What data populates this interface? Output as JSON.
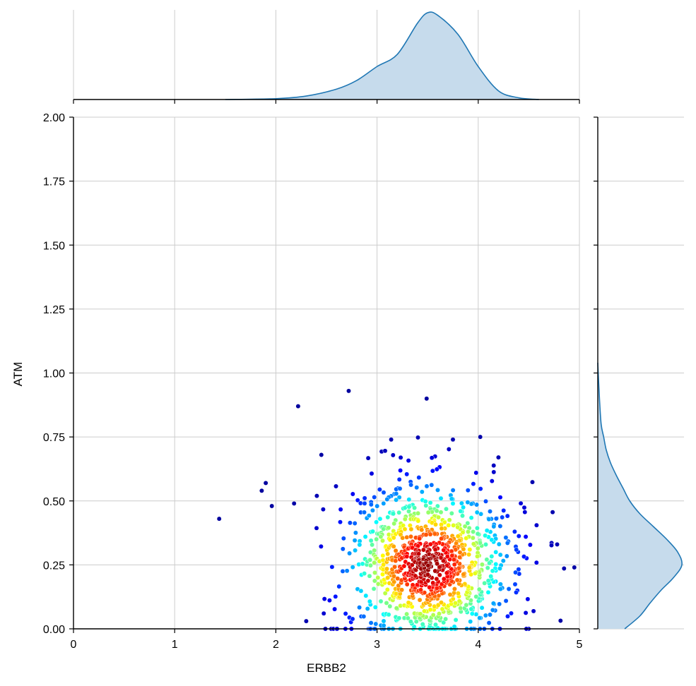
{
  "chart_data": {
    "type": "scatter",
    "kind": "joint-plot-with-marginal-kde",
    "xlabel": "ERBB2",
    "ylabel": "ATM",
    "xlim": [
      0,
      5
    ],
    "ylim": [
      0,
      2
    ],
    "x_ticks": [
      "0",
      "1",
      "2",
      "3",
      "4",
      "5"
    ],
    "y_ticks": [
      "0.00",
      "0.25",
      "0.50",
      "0.75",
      "1.00",
      "1.25",
      "1.50",
      "1.75",
      "2.00"
    ],
    "grid": true,
    "colormap": "jet (point color encodes local density)",
    "point_count_estimate": 1000,
    "point_distribution": {
      "x_center": 3.5,
      "x_sd": 0.42,
      "y_center": 0.25,
      "y_sd": 0.16,
      "y_floor": 0.0
    },
    "notable_outliers": [
      {
        "x": 1.44,
        "y": 0.43
      },
      {
        "x": 1.86,
        "y": 0.54
      },
      {
        "x": 1.9,
        "y": 0.57
      },
      {
        "x": 1.96,
        "y": 0.48
      },
      {
        "x": 2.18,
        "y": 0.49
      },
      {
        "x": 2.22,
        "y": 0.87
      },
      {
        "x": 2.72,
        "y": 0.93
      },
      {
        "x": 3.49,
        "y": 0.9
      },
      {
        "x": 4.02,
        "y": 0.75
      },
      {
        "x": 3.75,
        "y": 0.74
      },
      {
        "x": 3.14,
        "y": 0.74
      },
      {
        "x": 2.3,
        "y": 0.03
      },
      {
        "x": 4.2,
        "y": 0.67
      },
      {
        "x": 4.36,
        "y": 0.38
      },
      {
        "x": 4.47,
        "y": 0.36
      },
      {
        "x": 4.78,
        "y": 0.33
      },
      {
        "x": 4.95,
        "y": 0.24
      },
      {
        "x": 2.45,
        "y": 0.68
      }
    ],
    "marginal_x_kde": {
      "x": [
        1.5,
        2.0,
        2.3,
        2.6,
        2.8,
        3.0,
        3.2,
        3.4,
        3.5,
        3.6,
        3.8,
        4.0,
        4.2,
        4.4,
        4.6
      ],
      "density": [
        0.0,
        0.01,
        0.04,
        0.12,
        0.22,
        0.38,
        0.52,
        0.88,
        1.0,
        0.97,
        0.75,
        0.38,
        0.1,
        0.02,
        0.0
      ]
    },
    "marginal_y_kde": {
      "y": [
        0.0,
        0.05,
        0.1,
        0.15,
        0.2,
        0.25,
        0.3,
        0.35,
        0.4,
        0.45,
        0.5,
        0.55,
        0.6,
        0.65,
        0.7,
        0.75,
        0.8,
        0.9,
        1.04
      ],
      "density": [
        0.32,
        0.5,
        0.62,
        0.75,
        0.9,
        1.0,
        0.95,
        0.82,
        0.66,
        0.5,
        0.38,
        0.3,
        0.22,
        0.15,
        0.1,
        0.07,
        0.04,
        0.02,
        0.0
      ]
    },
    "colors": {
      "kde_line": "#1f77b4",
      "kde_fill": "#c6dbec",
      "grid": "#cccccc",
      "axis": "#000000"
    }
  }
}
